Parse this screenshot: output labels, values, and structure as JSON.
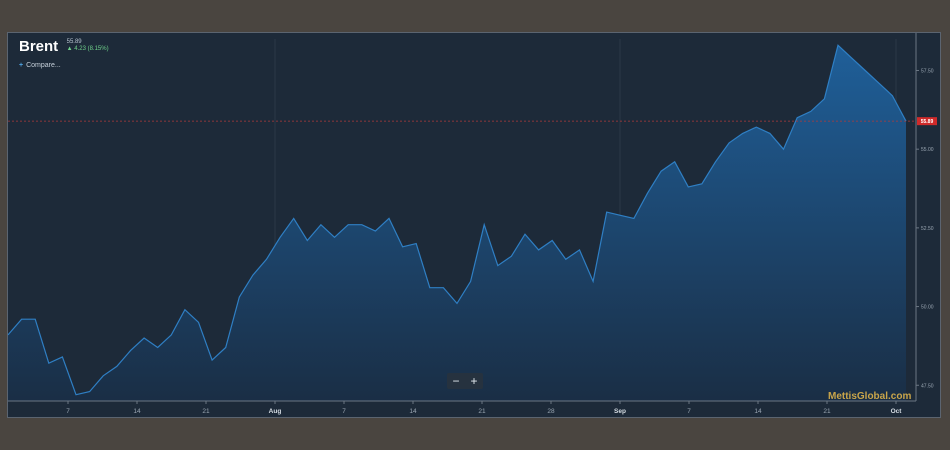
{
  "header": {
    "instrument": "Brent",
    "last_price": "55.89",
    "change": "4.23 (8.15%)"
  },
  "compare_label": "Compare...",
  "zoom": {
    "out_label": "−",
    "in_label": "+"
  },
  "watermark": "MettisGlobal.com",
  "colors": {
    "background": "#1d2a39",
    "line": "#2f7fc4",
    "fill_top": "#1f5f99",
    "fill_bottom": "#1a2e45",
    "last_price_badge": "#d02a2a",
    "last_price_line": "#b03a3a"
  },
  "chart_data": {
    "type": "area",
    "title": "Brent",
    "x_ticks": [
      "7",
      "14",
      "21",
      "Aug",
      "7",
      "14",
      "21",
      "28",
      "Sep",
      "7",
      "14",
      "21",
      "Oct"
    ],
    "y_ticks": [
      "57.50",
      "55.00",
      "52.50",
      "50.00",
      "47.50"
    ],
    "ylim": [
      47.0,
      58.5
    ],
    "last_value": 55.89,
    "last_value_label": "55.89",
    "grid": true,
    "series": [
      {
        "values": [
          49.1,
          49.6,
          49.6,
          48.2,
          48.4,
          47.2,
          47.3,
          47.8,
          48.1,
          48.6,
          49.0,
          48.7,
          49.1,
          49.9,
          49.5,
          48.3,
          48.7,
          50.3,
          51.0,
          51.5,
          52.2,
          52.8,
          52.1,
          52.6,
          52.2,
          52.6,
          52.6,
          52.4,
          52.8,
          51.9,
          52.0,
          50.6,
          50.6,
          50.1,
          50.8,
          52.6,
          51.3,
          51.6,
          52.3,
          51.8,
          52.1,
          51.5,
          51.8,
          50.8,
          53.0,
          52.9,
          52.8,
          53.6,
          54.3,
          54.6,
          53.8,
          53.9,
          54.6,
          55.2,
          55.5,
          55.7,
          55.5,
          55.0,
          56.0,
          56.2,
          56.6,
          58.3,
          57.9,
          57.5,
          57.1,
          56.7,
          55.89
        ]
      }
    ]
  }
}
